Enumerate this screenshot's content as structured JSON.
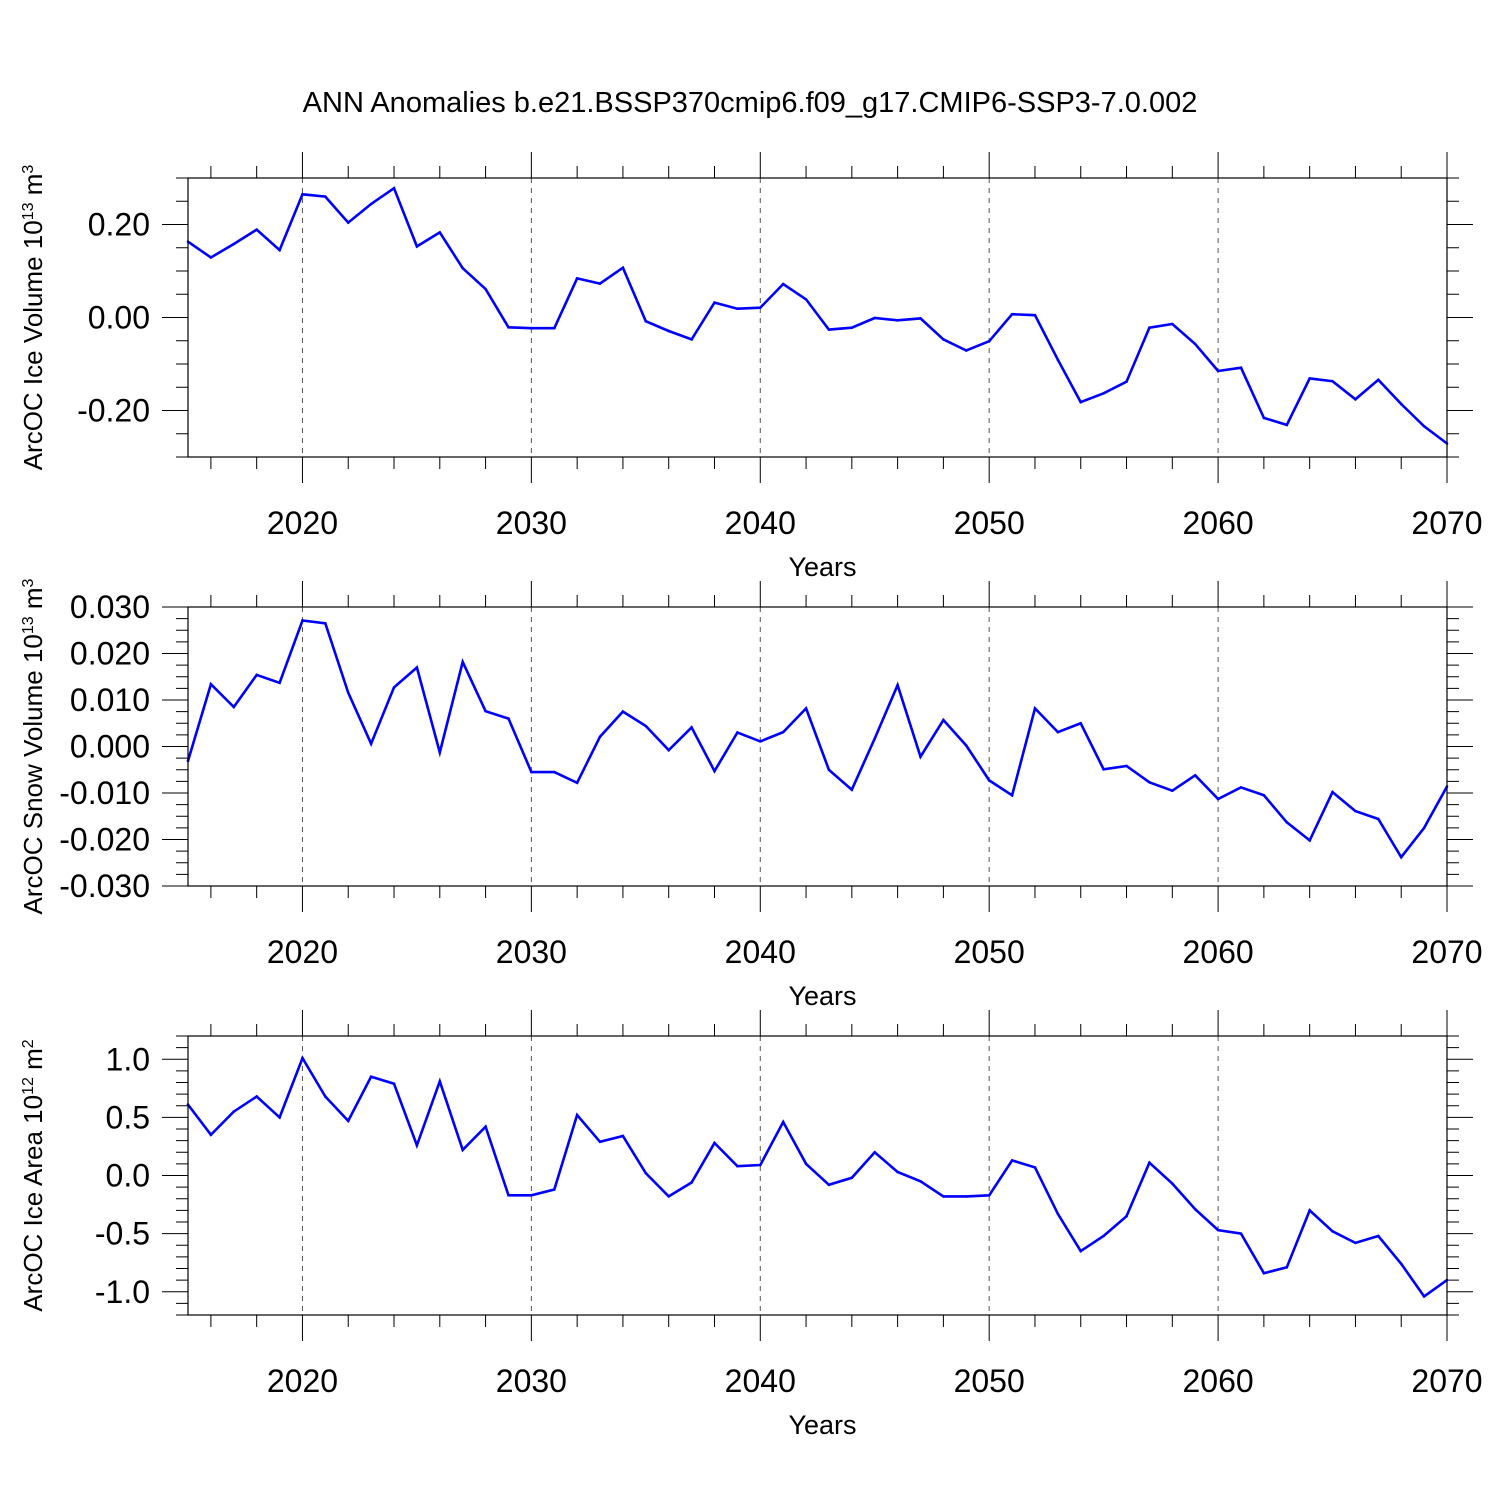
{
  "title": "ANN Anomalies b.e21.BSSP370cmip6.f09_g17.CMIP6-SSP3-7.0.002",
  "colors": {
    "line": "#0000ff",
    "axes": "#000000",
    "grid": "#555555"
  },
  "chart_data": [
    {
      "type": "line",
      "name": "ice-volume",
      "ylabel": {
        "main": "ArcOC Ice Volume 10",
        "exp": "13",
        "unit": " m",
        "unit_exp": "3"
      },
      "xlabel": "Years",
      "xlim": [
        2015,
        2070
      ],
      "ylim": [
        -0.3,
        0.3
      ],
      "yticks": [
        {
          "value": 0.2,
          "label": "0.20"
        },
        {
          "value": 0.0,
          "label": "0.00"
        },
        {
          "value": -0.2,
          "label": "-0.20"
        }
      ],
      "xticks": [
        "2020",
        "2030",
        "2040",
        "2050",
        "2060",
        "2070"
      ],
      "grid": "vertical dashed at decades",
      "x": [
        2015,
        2016,
        2017,
        2018,
        2019,
        2020,
        2021,
        2022,
        2023,
        2024,
        2025,
        2026,
        2027,
        2028,
        2029,
        2030,
        2031,
        2032,
        2033,
        2034,
        2035,
        2036,
        2037,
        2038,
        2039,
        2040,
        2041,
        2042,
        2043,
        2044,
        2045,
        2046,
        2047,
        2048,
        2049,
        2050,
        2051,
        2052,
        2053,
        2054,
        2055,
        2056,
        2057,
        2058,
        2059,
        2060,
        2061,
        2062,
        2063,
        2064,
        2065,
        2066,
        2067,
        2068,
        2069,
        2070
      ],
      "y": [
        0.163,
        0.129,
        0.158,
        0.189,
        0.145,
        0.265,
        0.26,
        0.204,
        0.244,
        0.278,
        0.153,
        0.183,
        0.106,
        0.061,
        -0.021,
        -0.023,
        -0.023,
        0.084,
        0.073,
        0.107,
        -0.008,
        -0.029,
        -0.047,
        0.032,
        0.019,
        0.021,
        0.072,
        0.039,
        -0.026,
        -0.022,
        -0.001,
        -0.006,
        -0.002,
        -0.047,
        -0.071,
        -0.051,
        0.007,
        0.005,
        -0.091,
        -0.182,
        -0.163,
        -0.138,
        -0.022,
        -0.014,
        -0.057,
        -0.115,
        -0.108,
        -0.216,
        -0.231,
        -0.131,
        -0.137,
        -0.176,
        -0.134,
        -0.186,
        -0.234,
        -0.271
      ]
    },
    {
      "type": "line",
      "name": "snow-volume",
      "ylabel": {
        "main": "ArcOC Snow Volume 10",
        "exp": "13",
        "unit": " m",
        "unit_exp": "3"
      },
      "xlabel": "Years",
      "xlim": [
        2015,
        2070
      ],
      "ylim": [
        -0.03,
        0.03
      ],
      "yticks": [
        {
          "value": 0.03,
          "label": "0.030"
        },
        {
          "value": 0.02,
          "label": "0.020"
        },
        {
          "value": 0.01,
          "label": "0.010"
        },
        {
          "value": 0.0,
          "label": "0.000"
        },
        {
          "value": -0.01,
          "label": "-0.010"
        },
        {
          "value": -0.02,
          "label": "-0.020"
        },
        {
          "value": -0.03,
          "label": "-0.030"
        }
      ],
      "xticks": [
        "2020",
        "2030",
        "2040",
        "2050",
        "2060",
        "2070"
      ],
      "grid": "vertical dashed at decades",
      "x": [
        2015,
        2016,
        2017,
        2018,
        2019,
        2020,
        2021,
        2022,
        2023,
        2024,
        2025,
        2026,
        2027,
        2028,
        2029,
        2030,
        2031,
        2032,
        2033,
        2034,
        2035,
        2036,
        2037,
        2038,
        2039,
        2040,
        2041,
        2042,
        2043,
        2044,
        2045,
        2046,
        2047,
        2048,
        2049,
        2050,
        2051,
        2052,
        2053,
        2054,
        2055,
        2056,
        2057,
        2058,
        2059,
        2060,
        2061,
        2062,
        2063,
        2064,
        2065,
        2066,
        2067,
        2068,
        2069,
        2070
      ],
      "y": [
        -0.0031,
        0.0134,
        0.0085,
        0.0154,
        0.0137,
        0.0271,
        0.0265,
        0.0116,
        0.0006,
        0.0127,
        0.017,
        -0.0013,
        0.0182,
        0.0076,
        0.006,
        -0.0055,
        -0.0055,
        -0.0078,
        0.0021,
        0.0075,
        0.0044,
        -0.0008,
        0.0041,
        -0.0053,
        0.003,
        0.0011,
        0.0031,
        0.0082,
        -0.005,
        -0.0093,
        0.0017,
        0.0132,
        -0.0022,
        0.0057,
        0.0002,
        -0.0073,
        -0.0105,
        0.0082,
        0.0031,
        0.005,
        -0.0049,
        -0.0042,
        -0.0077,
        -0.0095,
        -0.0062,
        -0.0113,
        -0.0088,
        -0.0105,
        -0.0163,
        -0.0202,
        -0.0098,
        -0.0139,
        -0.0156,
        -0.0238,
        -0.0175,
        -0.0086
      ]
    },
    {
      "type": "line",
      "name": "ice-area",
      "ylabel": {
        "main": "ArcOC Ice Area 10",
        "exp": "12",
        "unit": " m",
        "unit_exp": "2"
      },
      "xlabel": "Years",
      "xlim": [
        2015,
        2070
      ],
      "ylim": [
        -1.2,
        1.2
      ],
      "yticks": [
        {
          "value": 1.0,
          "label": "1.0"
        },
        {
          "value": 0.5,
          "label": "0.5"
        },
        {
          "value": 0.0,
          "label": "0.0"
        },
        {
          "value": -0.5,
          "label": "-0.5"
        },
        {
          "value": -1.0,
          "label": "-1.0"
        }
      ],
      "xticks": [
        "2020",
        "2030",
        "2040",
        "2050",
        "2060",
        "2070"
      ],
      "grid": "vertical dashed at decades",
      "x": [
        2015,
        2016,
        2017,
        2018,
        2019,
        2020,
        2021,
        2022,
        2023,
        2024,
        2025,
        2026,
        2027,
        2028,
        2029,
        2030,
        2031,
        2032,
        2033,
        2034,
        2035,
        2036,
        2037,
        2038,
        2039,
        2040,
        2041,
        2042,
        2043,
        2044,
        2045,
        2046,
        2047,
        2048,
        2049,
        2050,
        2051,
        2052,
        2053,
        2054,
        2055,
        2056,
        2057,
        2058,
        2059,
        2060,
        2061,
        2062,
        2063,
        2064,
        2065,
        2066,
        2067,
        2068,
        2069,
        2070
      ],
      "y": [
        0.61,
        0.35,
        0.55,
        0.68,
        0.5,
        1.01,
        0.68,
        0.47,
        0.85,
        0.79,
        0.26,
        0.81,
        0.22,
        0.42,
        -0.17,
        -0.17,
        -0.12,
        0.52,
        0.29,
        0.34,
        0.02,
        -0.18,
        -0.06,
        0.28,
        0.08,
        0.09,
        0.46,
        0.1,
        -0.08,
        -0.02,
        0.2,
        0.03,
        -0.05,
        -0.18,
        -0.18,
        -0.17,
        0.13,
        0.07,
        -0.33,
        -0.65,
        -0.52,
        -0.35,
        0.11,
        -0.07,
        -0.29,
        -0.47,
        -0.5,
        -0.84,
        -0.79,
        -0.3,
        -0.48,
        -0.58,
        -0.52,
        -0.76,
        -1.04,
        -0.9
      ]
    }
  ]
}
